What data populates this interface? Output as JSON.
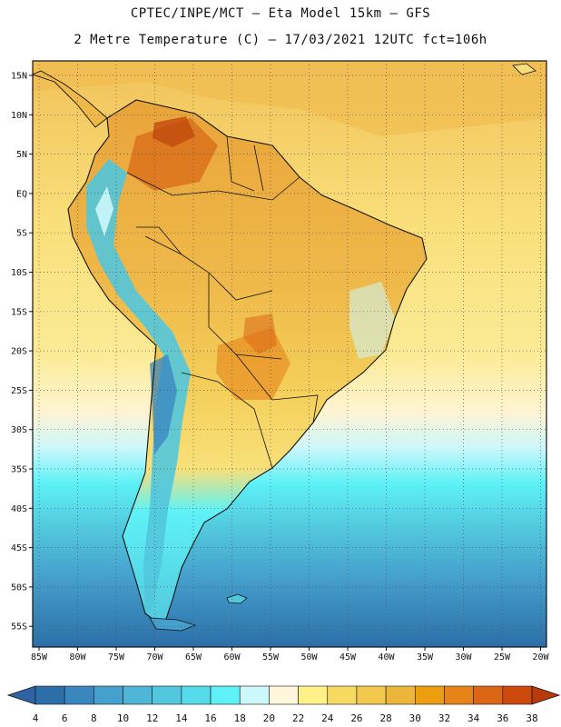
{
  "header": {
    "line1": "CPTEC/INPE/MCT –  Eta Model 15km – GFS",
    "line2": "2 Metre Temperature (C) – 17/03/2021 12UTC fct=106h"
  },
  "lat_labels": [
    "15N",
    "10N",
    "5N",
    "EQ",
    "5S",
    "10S",
    "15S",
    "20S",
    "25S",
    "30S",
    "35S",
    "40S",
    "45S",
    "50S",
    "55S"
  ],
  "lon_labels": [
    "85W",
    "80W",
    "75W",
    "70W",
    "65W",
    "60W",
    "55W",
    "50W",
    "45W",
    "40W",
    "35W",
    "30W",
    "25W",
    "20W"
  ],
  "colorbar": {
    "labels": [
      "4",
      "6",
      "8",
      "10",
      "12",
      "14",
      "16",
      "18",
      "20",
      "22",
      "24",
      "26",
      "28",
      "30",
      "32",
      "34",
      "36",
      "38"
    ],
    "colors": [
      "#2c6fa8",
      "#3a86bf",
      "#45a0cd",
      "#4fb6d8",
      "#52c7dd",
      "#55dbe9",
      "#5ef2f7",
      "#ccf7fb",
      "#fff7dc",
      "#fdf187",
      "#f7da62",
      "#f2c84f",
      "#edb63b",
      "#ed9e10",
      "#e68419",
      "#db6716",
      "#cc4a0c"
    ],
    "low_color": "#2f63a5",
    "high_color": "#b83a0a"
  }
}
